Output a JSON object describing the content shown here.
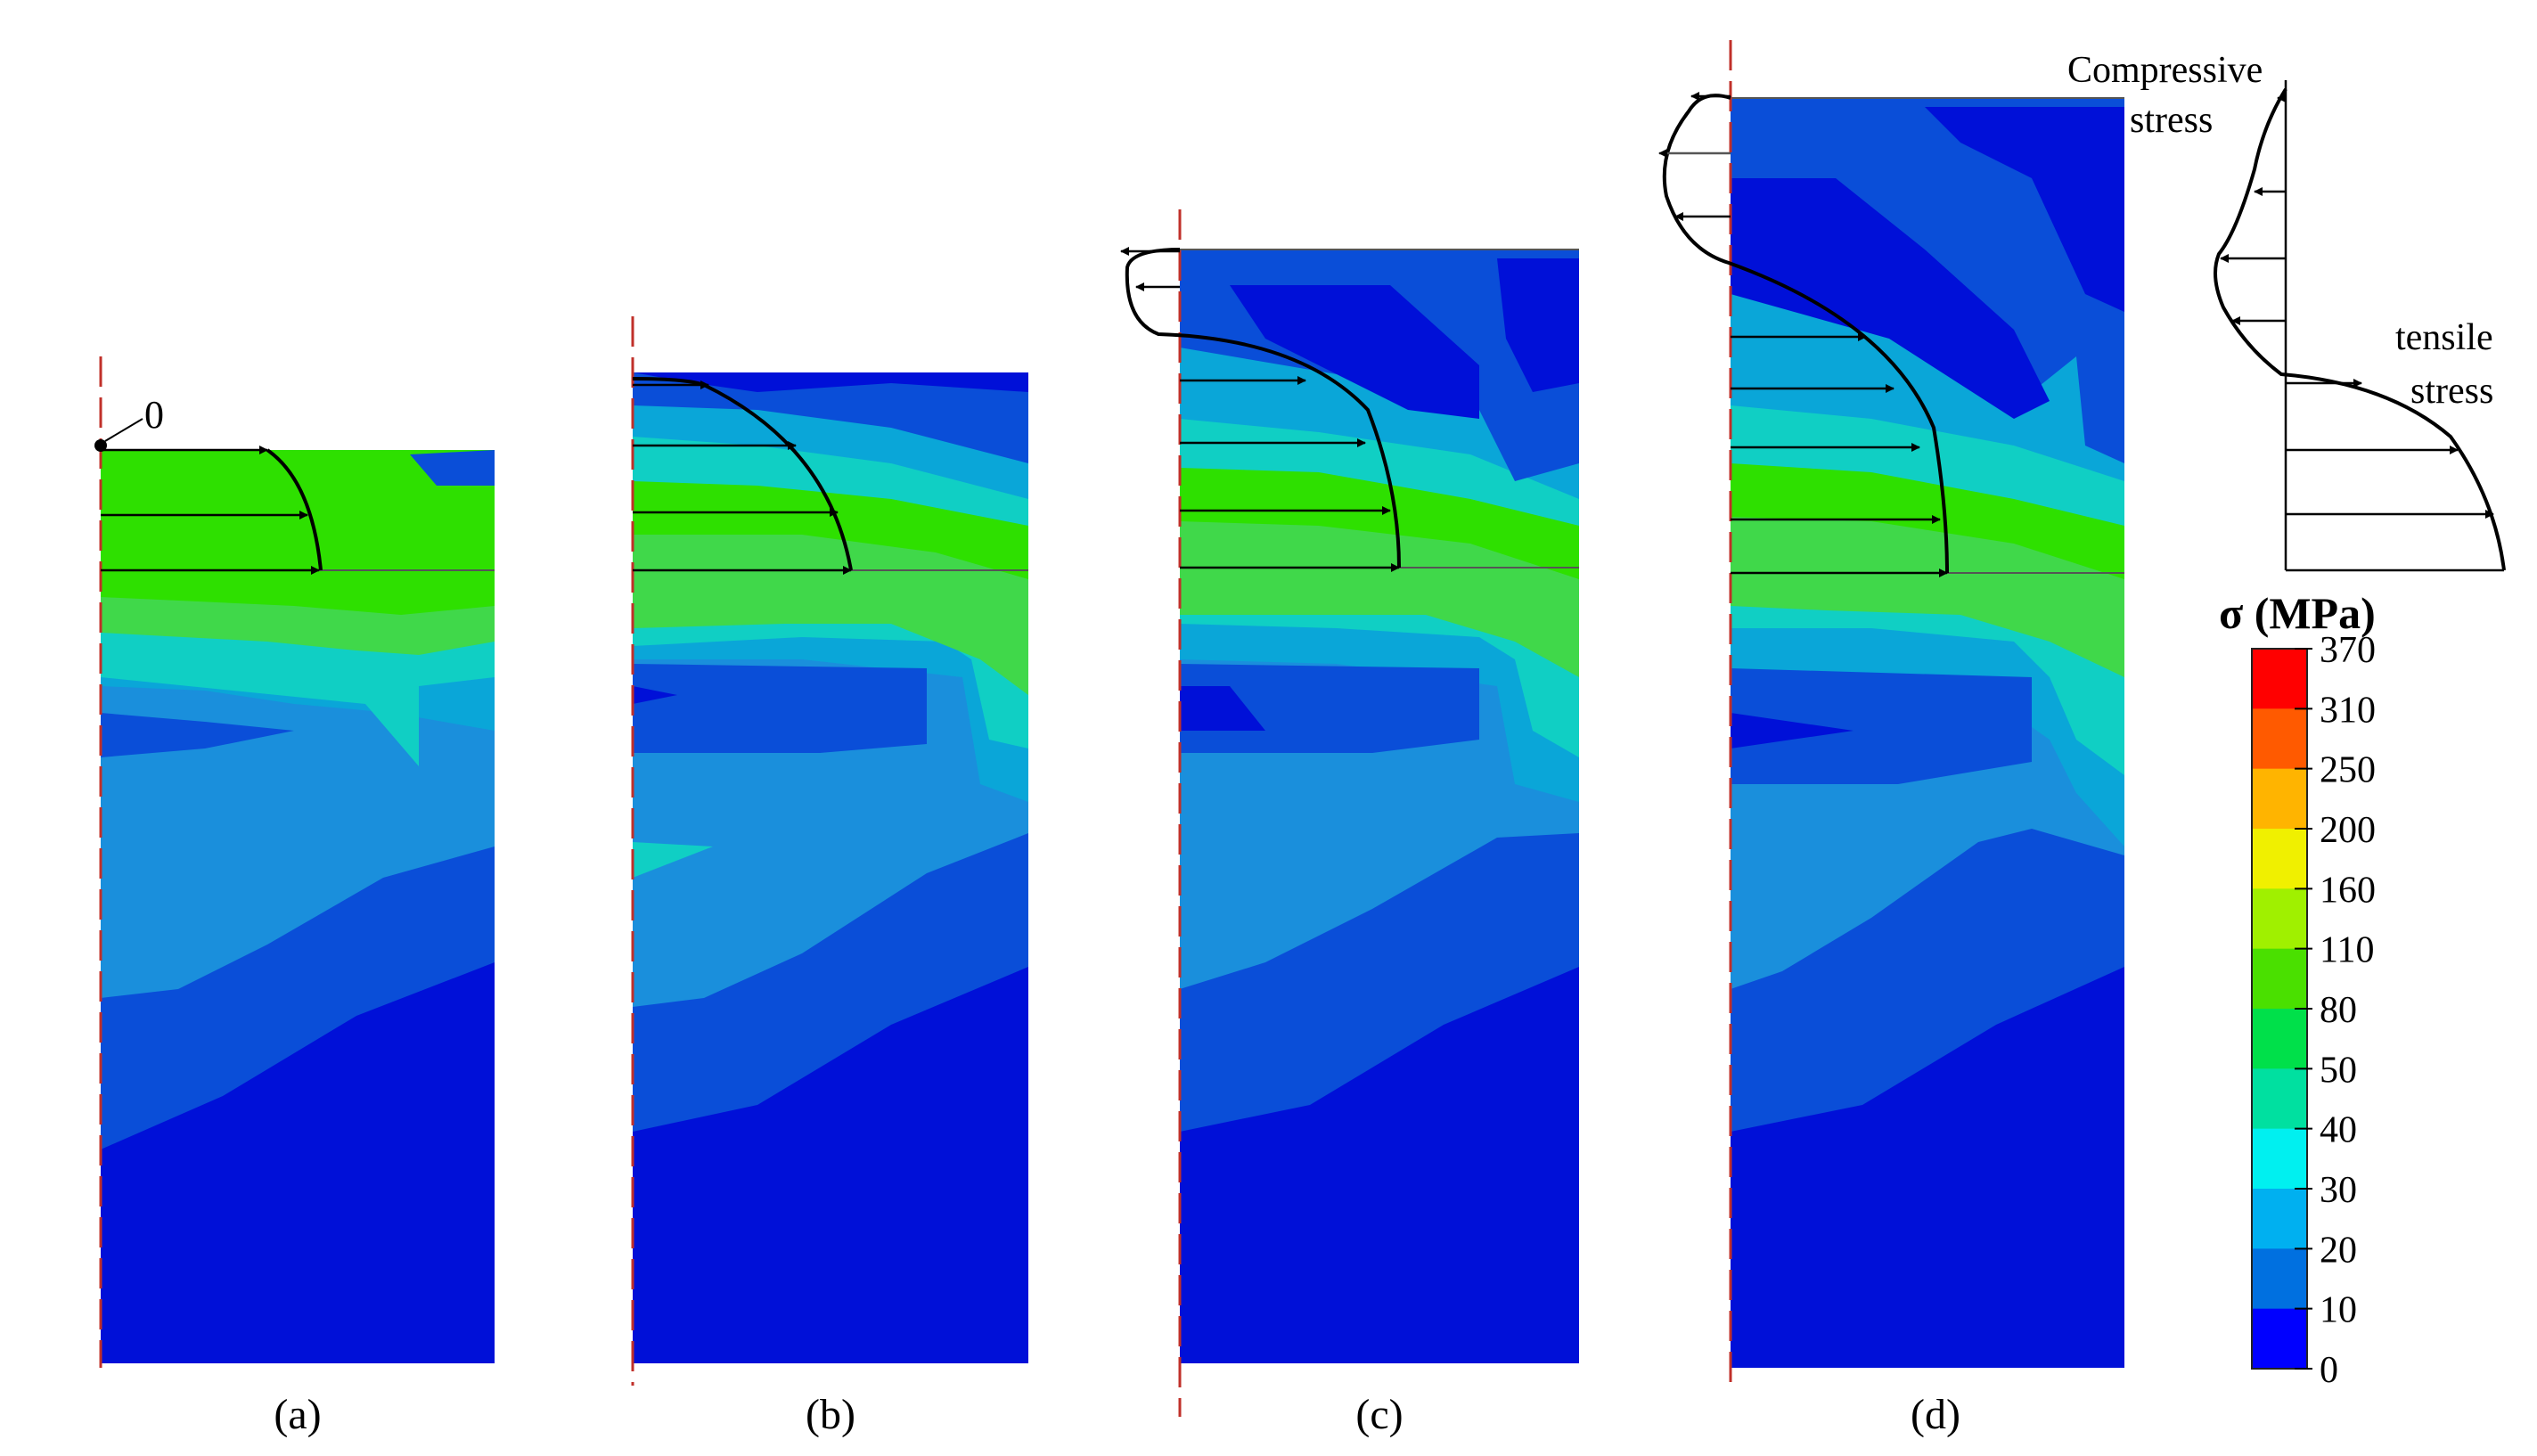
{
  "panels": [
    {
      "id": "a",
      "label": "(a)",
      "origin_label": "0"
    },
    {
      "id": "b",
      "label": "(b)"
    },
    {
      "id": "c",
      "label": "(c)"
    },
    {
      "id": "d",
      "label": "(d)"
    }
  ],
  "stress_schematic": {
    "compressive_line1": "Compressive",
    "compressive_line2": "stress",
    "tensile_line1": "tensile",
    "tensile_line2": "stress"
  },
  "legend": {
    "title": "σ (MPa)",
    "ticks": [
      "370",
      "310",
      "250",
      "200",
      "160",
      "110",
      "80",
      "50",
      "40",
      "30",
      "20",
      "10",
      "0"
    ],
    "colors": [
      "#ff0000",
      "#ff5a00",
      "#ffb400",
      "#f0f000",
      "#a0f000",
      "#4ae000",
      "#00e04a",
      "#00e0a0",
      "#00f0f0",
      "#00b0f0",
      "#0070e0",
      "#0040e8",
      "#0000ff"
    ]
  },
  "colors": {
    "deep_blue": "#0010d8",
    "blue": "#0a4ed8",
    "mid_blue": "#1a8fdc",
    "cyan_blue": "#0aa6d8",
    "teal": "#10cfc4",
    "light_green": "#40d84a",
    "green": "#2ee000",
    "axis_red": "#c0302a"
  }
}
